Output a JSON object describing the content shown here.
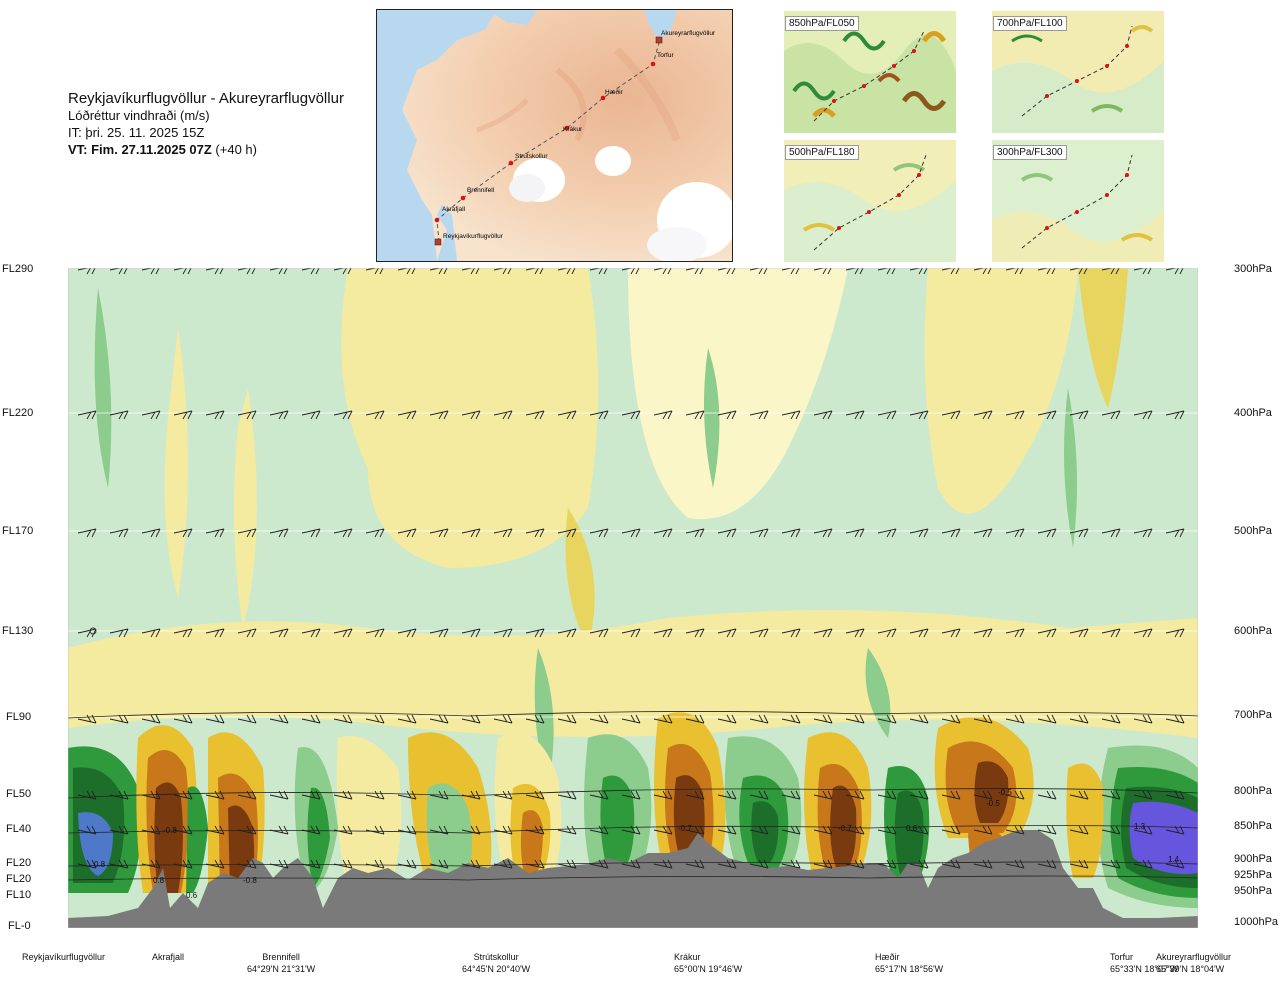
{
  "header": {
    "route": "Reykjavíkurflugvöllur - Akureyrarflugvöllur",
    "product": "Lóðréttur vindhraði (m/s)",
    "issue_time": "IT: þri. 25. 11. 2025 15Z",
    "valid_prefix": "VT: Fim. 27.11.2025 07Z",
    "valid_suffix": " (+40 h)"
  },
  "route_map": {
    "waypoints": [
      "Akureyrarflugvöllur",
      "Torfur",
      "Hæðir",
      "Krákur",
      "Strútskollur",
      "Brennifell",
      "Akrafjall",
      "Reykjavíkurflugvöllur"
    ]
  },
  "level_panels": [
    {
      "label": "850hPa/FL050"
    },
    {
      "label": "700hPa/FL100"
    },
    {
      "label": "500hPa/FL180"
    },
    {
      "label": "300hPa/FL300"
    }
  ],
  "left_axis": [
    "FL290",
    "FL220",
    "FL170",
    "FL130",
    "FL90",
    "FL50",
    "FL40",
    "FL20",
    "FL20",
    "FL10",
    "FL-0"
  ],
  "right_axis": [
    "300hPa",
    "400hPa",
    "500hPa",
    "600hPa",
    "700hPa",
    "800hPa",
    "850hPa",
    "900hPa",
    "925hPa",
    "950hPa",
    "1000hPa"
  ],
  "contour_values": [
    "0.8",
    "-0.8",
    "0.8",
    "-0.8",
    "0.6",
    "-0.7",
    "-0.7",
    "-0.5",
    "0.6",
    "-0.5",
    "1.3",
    "1.4"
  ],
  "locations": [
    {
      "name": "Reykjavíkurflugvöllur",
      "coord": ""
    },
    {
      "name": "Akrafjall",
      "coord": ""
    },
    {
      "name": "Brennifell",
      "coord": "64°29'N 21°31'W"
    },
    {
      "name": "Strútskollur",
      "coord": "64°45'N 20°40'W"
    },
    {
      "name": "Krákur",
      "coord": "65°00'N 19°46'W"
    },
    {
      "name": "Hæðir",
      "coord": "65°17'N 18°56'W"
    },
    {
      "name": "Torfur",
      "coord": "65°33'N 18°07'W"
    },
    {
      "name": "Akureyrarflugvöllur",
      "coord": "65°39'N 18°04'W"
    }
  ],
  "colors": {
    "strong_down": "#7a3a10",
    "down": "#c8781a",
    "weak_down": "#e8c030",
    "faint_down": "#f5eba0",
    "faint_up": "#cde9cd",
    "weak_up": "#8ccc8c",
    "up": "#2e9a3c",
    "strong_up": "#1c6e2a",
    "very_strong_up": "#4d79c8",
    "extreme_up": "#6655dd",
    "terrain": "#7a7a7a"
  }
}
